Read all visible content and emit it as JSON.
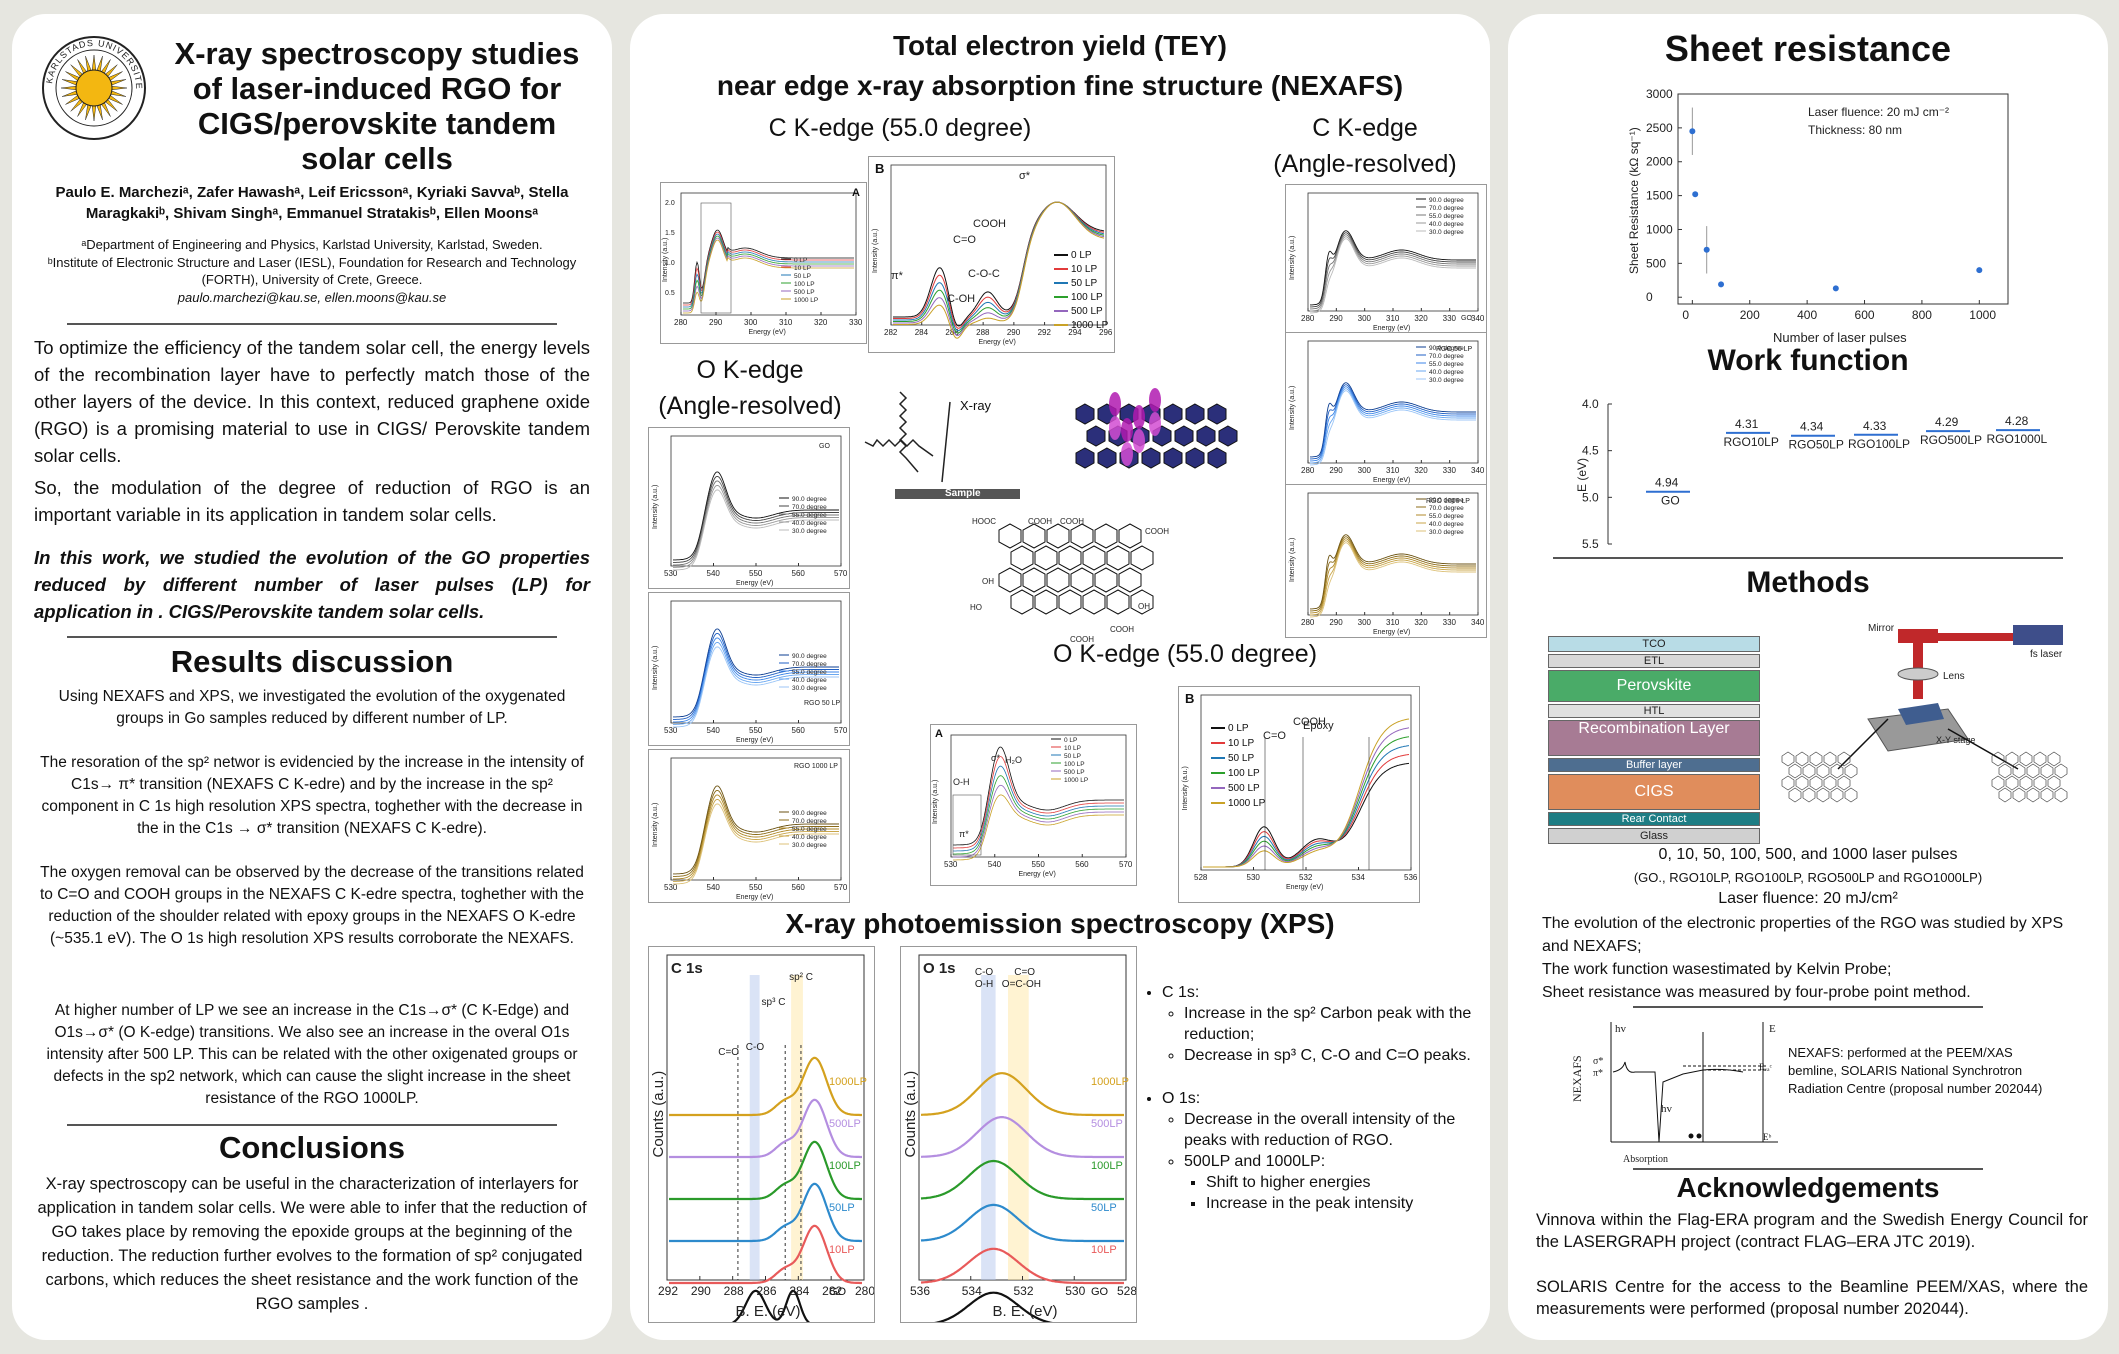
{
  "left": {
    "title": "X-ray spectroscopy studies of laser-induced RGO for CIGS/perovskite tandem solar cells",
    "logo_text": "KARLSTADS UNIVERSITET",
    "authors": "Paulo E. Marcheziᵃ, Zafer Hawashᵃ, Leif Ericssonᵃ, Kyriaki Savvaᵇ, Stella Maragkakiᵇ, Shivam Singhᵃ, Emmanuel Stratakisᵇ, Ellen Moonsᵃ",
    "affil_a": "ᵃDepartment of Engineering and Physics, Karlstad University, Karlstad, Sweden.",
    "affil_b": "ᵇInstitute of Electronic Structure and Laser (IESL), Foundation for Research and Technology (FORTH),  University of Crete, Greece.",
    "emails": "paulo.marchezi@kau.se, ellen.moons@kau.se",
    "intro_1": "To optimize the efficiency of the tandem solar cell, the energy levels of the recombination layer have to perfectly match those of the other layers of the device. In this context, reduced graphene oxide (RGO) is a promising material to use in CIGS/ Perovskite tandem solar cells.",
    "intro_2": "So, the modulation of the degree of reduction of RGO is an important variable in its application in tandem solar cells.",
    "intro_3": "In this work, we studied the evolution of the GO properties reduced by different number of laser pulses (LP) for application in . CIGS/Perovskite tandem solar cells.",
    "results_heading": "Results discussion",
    "results_1": "Using NEXAFS and XPS, we investigated the evolution of the oxygenated groups in Go samples reduced by different number of LP.",
    "results_2": "The resoration of the sp² networ is evidencied by the increase in the intensity of  C1s→ π* transition (NEXAFS C K-edre) and by the increase in the sp² component in C 1s high resolution XPS spectra, toghether with the decrease in the in the C1s → σ* transition (NEXAFS C K-edre).",
    "results_3": "The oxygen removal can be observed by the decrease of the transitions related to C=O and COOH groups in the NEXAFS C K-edre spectra, toghether with the reduction of the  shoulder related with epoxy groups in the NEXAFS O K-edre (~535.1 eV). The O 1s high resolution XPS results corroborate the NEXAFS.",
    "results_4": "At higher number of LP we see an increase in the C1s→σ* (C K-Edge) and O1s→σ* (O K-edge) transitions. We also see an increase in the overal O1s intensity after 500 LP. This can be related with the other oxigenated groups or defects in the sp2 network, which can cause the slight increase in the sheet resistance of the RGO 1000LP.",
    "conclusions_heading": "Conclusions",
    "conclusions": "X-ray spectroscopy can be useful in the characterization of interlayers for application in tandem solar cells. We were able to infer that the reduction of GO takes place by removing the epoxide groups at the beginning of the reduction. The reduction further evolves to the formation of sp² conjugated carbons, which reduces the sheet resistance and the work function of the RGO samples ."
  },
  "mid": {
    "title_1": "Total electron yield (TEY)",
    "title_2": "near edge x-ray absorption fine structure (NEXAFS)",
    "c_k_55": "C K-edge (55.0 degree)",
    "c_k_ang_1": "C K-edge",
    "c_k_ang_2": "(Angle-resolved)",
    "o_k_ang_1": "O K-edge",
    "o_k_ang_2": "(Angle-resolved)",
    "o_k_55": "O K-edge (55.0 degree)",
    "xps_title": "X-ray photoemission spectroscopy (XPS)",
    "xray_label": "X-ray",
    "sample_label": "Sample",
    "intensity_label": "Intensity (a.u.)",
    "energy_label": "Energy (eV)",
    "panel_a": "A",
    "panel_b": "B",
    "lp_legend": [
      "0 LP",
      "10 LP",
      "50 LP",
      "100 LP",
      "500 LP",
      "1000 LP"
    ],
    "deg_legend": [
      "90.0 degree",
      "70.0 degree",
      "55.0 degree",
      "40.0 degree",
      "30.0 degree"
    ],
    "sample_go": "GO",
    "sample_rgo50": "RGO 50 LP",
    "sample_rgo1000": "RGO 1000 LP",
    "ck_ann": [
      "σ*",
      "COOH",
      "C=O",
      "π*",
      "C-O-C",
      "C-OH"
    ],
    "ok_ann": [
      "COOH",
      "C=O",
      "Epoxy",
      "O-H",
      "H₂O",
      "π*",
      "σ*"
    ],
    "ck_xticks": [
      "282",
      "284",
      "286",
      "288",
      "290",
      "292",
      "294",
      "296"
    ],
    "ck_small_xticks": [
      "280",
      "290",
      "300",
      "310",
      "320",
      "330",
      "340"
    ],
    "ok_xticks": [
      "528",
      "530",
      "532",
      "534",
      "536"
    ],
    "ok_small_xticks": [
      "530",
      "540",
      "550",
      "560",
      "570"
    ],
    "xps_c": {
      "label": "C 1s",
      "peaks": [
        "sp² C",
        "sp³ C",
        "C-O",
        "C=O"
      ],
      "samples": [
        "1000LP",
        "500LP",
        "100LP",
        "50LP",
        "10LP",
        "GO"
      ],
      "xticks": [
        "292",
        "290",
        "288",
        "286",
        "284",
        "282",
        "280"
      ],
      "xlabel": "B. E. (eV)",
      "ylabel": "Counts (a.u.)"
    },
    "xps_o": {
      "label": "O 1s",
      "peaks": [
        "C-O",
        "O-H",
        "C=O",
        "O=C-OH"
      ],
      "samples": [
        "1000LP",
        "500LP",
        "100LP",
        "50LP",
        "10LP",
        "GO"
      ],
      "xticks": [
        "536",
        "534",
        "532",
        "530",
        "528"
      ],
      "xlabel": "B. E. (eV)",
      "ylabel": "Counts (a.u.)"
    },
    "bullets": {
      "c1s_head": "C 1s:",
      "c1s_1": "Increase in the sp² Carbon peak with the reduction;",
      "c1s_2": "Decrease in sp³ C, C-O and C=O peaks.",
      "o1s_head": "O 1s:",
      "o1s_1": "Decrease in the overall intensity of the peaks with reduction of RGO.",
      "o1s_2": "500LP and 1000LP:",
      "o1s_2a": "Shift to higher energies",
      "o1s_2b": "Increase in the peak intensity"
    }
  },
  "right": {
    "sheet_heading": "Sheet resistance",
    "work_heading": "Work function",
    "methods_heading": "Methods",
    "ack_heading": "Acknowledgements",
    "pulses": "0, 10, 50, 100, 500, and 1000 laser pulses",
    "samples": "(GO., RGO10LP, RGO100LP, RGO500LP and RGO1000LP)",
    "fluence": "Laser fluence: 20 mJ/cm²",
    "m1": "The evolution of the electronic properties of the RGO was studied by XPS and NEXAFS;",
    "m2": "The work function wasestimated by Kelvin Probe;",
    "m3": "Sheet resistance was measured by four-probe point method.",
    "nexafs_note": "NEXAFS: performed at the PEEM/XAS bemline,  SOLARIS National Synchrotron Radiation Centre (proposal number 202044)",
    "ack_1": "Vinnova within the Flag-ERA program and the Swedish Energy Council for the LASERGRAPH project (contract FLAG–ERA JTC 2019).",
    "ack_2": "SOLARIS Centre for the access to the Beamline PEEM/XAS, where the measurements were performed (proposal number 202044).",
    "stack": [
      "TCO",
      "ETL",
      "Perovskite",
      "HTL",
      "Recombination Layer",
      "Buffer layer",
      "CIGS",
      "Rear Contact",
      "Glass"
    ],
    "laser_labels": [
      "Mirror",
      "fs laser",
      "Lens",
      "X-Y stage"
    ],
    "nexafs_diag": [
      "hv",
      "E",
      "σ*",
      "π*",
      "Eᵥₐᶜ",
      "Eᵇ",
      "hv",
      "Absorption",
      "NEXAFS"
    ]
  },
  "chart_data": [
    {
      "type": "scatter",
      "xlabel": "Number of laser pulses",
      "ylabel": "Sheet Resistance (kΩ sq⁻¹)",
      "xlim": [
        -50,
        1100
      ],
      "ylim": [
        -100,
        3000
      ],
      "xticks": [
        0,
        200,
        400,
        600,
        800,
        1000
      ],
      "yticks": [
        0,
        500,
        1000,
        1500,
        2000,
        2500,
        3000
      ],
      "x": [
        0,
        10,
        50,
        100,
        500,
        1000
      ],
      "y": [
        2450,
        1520,
        700,
        190,
        130,
        400
      ],
      "err": [
        350,
        40,
        350,
        20,
        10,
        30
      ],
      "annotation_1": "Laser fluence: 20 mJ cm⁻²",
      "annotation_2": "Thickness: 80 nm"
    },
    {
      "type": "scatter",
      "ylabel": "E (eV)",
      "ylim": [
        4.0,
        5.5
      ],
      "yticks": [
        "4.0",
        "4.5",
        "5.0",
        "5.5"
      ],
      "categories": [
        "GO",
        "RGO10LP",
        "RGO50LP",
        "RGO100LP",
        "RGO500LP",
        "RGO1000LP"
      ],
      "values": [
        4.94,
        4.31,
        4.34,
        4.33,
        4.29,
        4.28
      ],
      "labels": [
        "4.94",
        "4.31",
        "4.34",
        "4.33",
        "4.29",
        "4.28"
      ]
    }
  ]
}
